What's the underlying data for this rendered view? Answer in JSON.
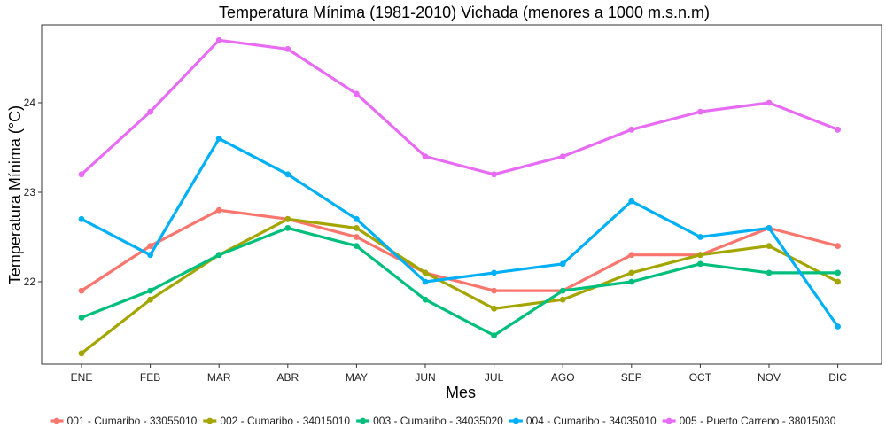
{
  "chart_data": {
    "type": "line",
    "title": "Temperatura Mínima (1981-2010) Vichada (menores a 1000 m.s.n.m)",
    "xlabel": "Mes",
    "ylabel": "Temperatura Mínima (°C)",
    "categories": [
      "ENE",
      "FEB",
      "MAR",
      "ABR",
      "MAY",
      "JUN",
      "JUL",
      "AGO",
      "SEP",
      "OCT",
      "NOV",
      "DIC"
    ],
    "yticks": [
      22,
      23,
      24
    ],
    "ylim": [
      21.1,
      24.8
    ],
    "grid": false,
    "legend_position": "bottom",
    "series": [
      {
        "name": "001 - Cumaribo - 33055010",
        "color": "#F8766D",
        "values": [
          21.9,
          22.4,
          22.8,
          22.7,
          22.5,
          22.1,
          21.9,
          21.9,
          22.3,
          22.3,
          22.6,
          22.4
        ]
      },
      {
        "name": "002 - Cumaribo - 34015010",
        "color": "#A3A500",
        "values": [
          21.2,
          21.8,
          22.3,
          22.7,
          22.6,
          22.1,
          21.7,
          21.8,
          22.1,
          22.3,
          22.4,
          22.0
        ]
      },
      {
        "name": "003 - Cumaribo - 34035020",
        "color": "#00BF7D",
        "values": [
          21.6,
          21.9,
          22.3,
          22.6,
          22.4,
          21.8,
          21.4,
          21.9,
          22.0,
          22.2,
          22.1,
          22.1
        ]
      },
      {
        "name": "004 - Cumaribo - 34035010",
        "color": "#00B0F6",
        "values": [
          22.7,
          22.3,
          23.6,
          23.2,
          22.7,
          22.0,
          22.1,
          22.2,
          22.9,
          22.5,
          22.6,
          21.5
        ]
      },
      {
        "name": "005 - Puerto Carreno - 38015030",
        "color": "#E76BF3",
        "values": [
          23.2,
          23.9,
          24.7,
          24.6,
          24.1,
          23.4,
          23.2,
          23.4,
          23.7,
          23.9,
          24.0,
          23.7
        ]
      }
    ]
  }
}
